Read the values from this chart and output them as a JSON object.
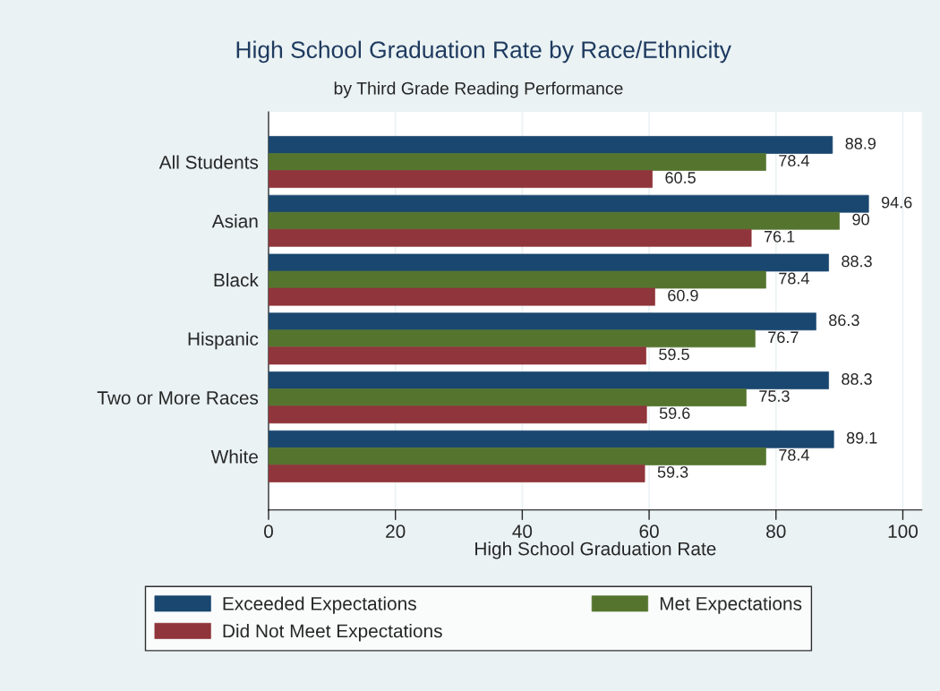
{
  "chart_data": {
    "type": "bar",
    "orientation": "horizontal",
    "title": "High School Graduation Rate by Race/Ethnicity",
    "subtitle": "by Third Grade Reading Performance",
    "xlabel": "High School Graduation Rate",
    "categories": [
      "All Students",
      "Asian",
      "Black",
      "Hispanic",
      "Two or More Races",
      "White"
    ],
    "series": [
      {
        "name": "Exceeded Expectations",
        "color": "#1a476f",
        "values": [
          88.9,
          94.6,
          88.3,
          86.3,
          88.3,
          89.1
        ]
      },
      {
        "name": "Met Expectations",
        "color": "#55752f",
        "values": [
          78.4,
          90,
          78.4,
          76.7,
          75.3,
          78.4
        ]
      },
      {
        "name": "Did Not Meet Expectations",
        "color": "#90353b",
        "values": [
          60.5,
          76.1,
          60.9,
          59.5,
          59.6,
          59.3
        ]
      }
    ],
    "xlim": [
      0,
      103
    ],
    "xticks": [
      0,
      20,
      40,
      60,
      80,
      100
    ],
    "grid": "x",
    "legend": "bottom",
    "data_labels": true
  }
}
